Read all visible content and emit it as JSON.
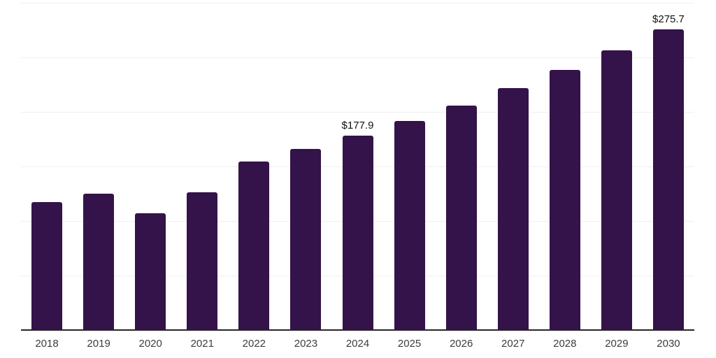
{
  "chart_data": {
    "type": "bar",
    "categories": [
      "2018",
      "2019",
      "2020",
      "2021",
      "2022",
      "2023",
      "2024",
      "2025",
      "2026",
      "2027",
      "2028",
      "2029",
      "2030"
    ],
    "values": [
      117.4,
      125.3,
      107.3,
      126.4,
      154.7,
      166.3,
      177.9,
      191.4,
      205.9,
      221.5,
      238.3,
      256.4,
      275.7
    ],
    "data_labels": [
      "",
      "",
      "",
      "",
      "",
      "",
      "$177.9",
      "",
      "",
      "",
      "",
      "",
      "$275.7"
    ],
    "title": "",
    "xlabel": "",
    "ylabel": "",
    "ylim": [
      0,
      300
    ],
    "gridline_interval": 50,
    "grid_divisions": 6,
    "grid": "horizontal",
    "legend": "none",
    "y_axis_labels_visible": false
  },
  "style": {
    "bar_color": "#331349",
    "grid_color": "#f0f0f0",
    "axis_line_color": "#262626",
    "background_color": "#ffffff",
    "data_label_color": "#111111",
    "tick_label_color": "#3d3d3d"
  }
}
